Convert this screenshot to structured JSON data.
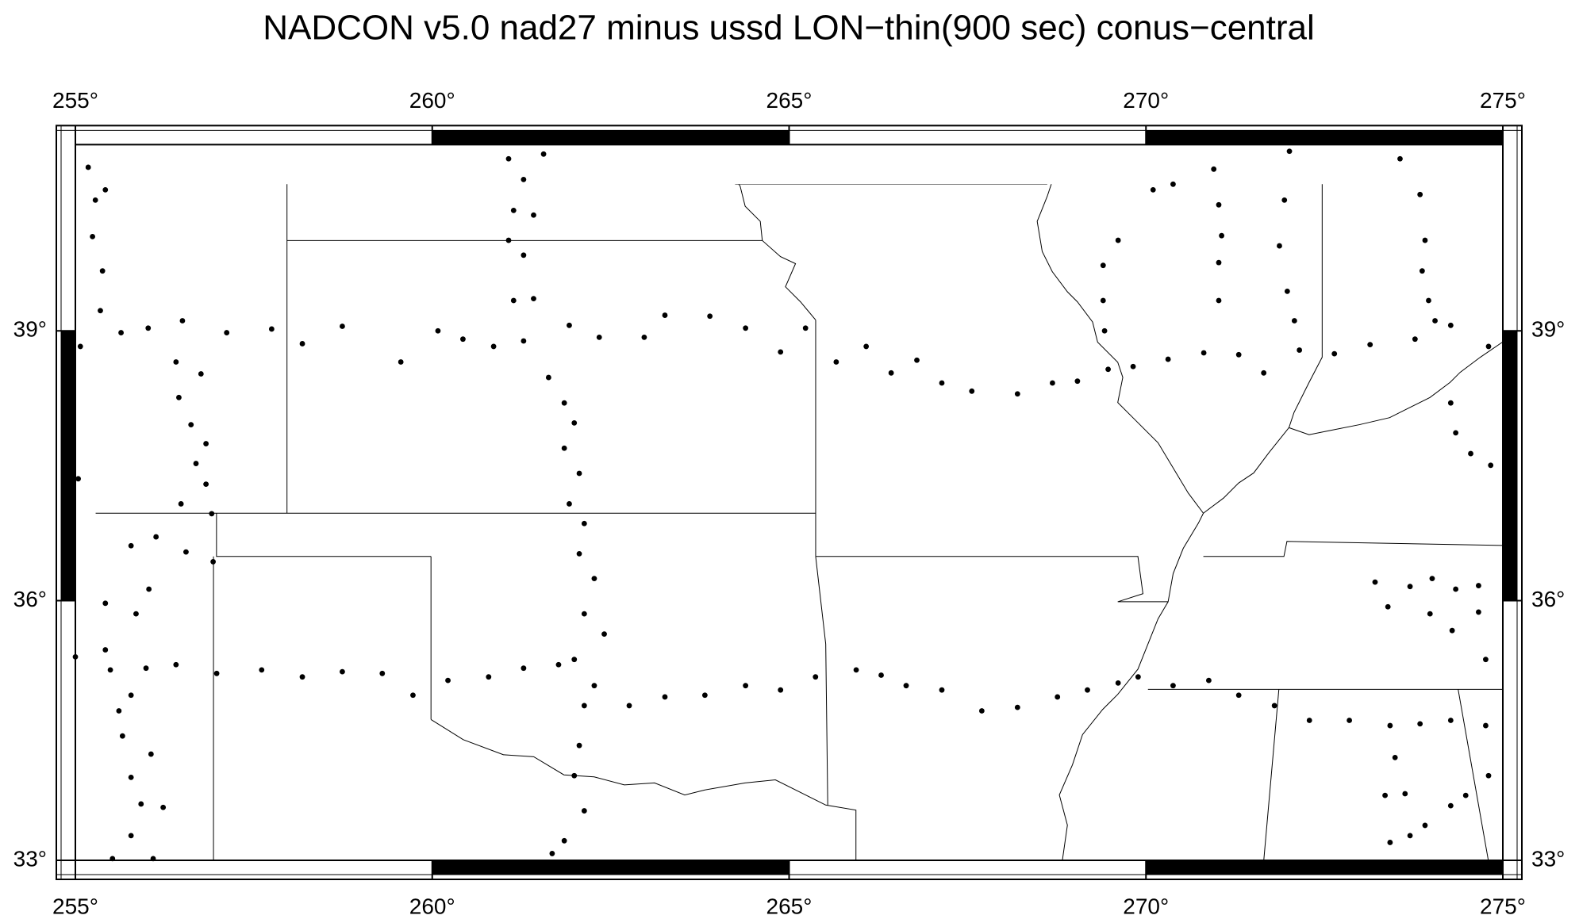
{
  "chart_data": {
    "type": "scatter",
    "title": "NADCON v5.0 nad27 minus ussd LON−thin(900 sec) conus−central",
    "projection": "mercator",
    "color": "#000000",
    "xlim": [
      255,
      275
    ],
    "ylim": [
      33,
      41
    ],
    "xticks": [
      {
        "value": 255,
        "label": "255°"
      },
      {
        "value": 260,
        "label": "260°"
      },
      {
        "value": 265,
        "label": "265°"
      },
      {
        "value": 270,
        "label": "270°"
      },
      {
        "value": 275,
        "label": "275°"
      }
    ],
    "yticks": [
      {
        "value": 33,
        "label": "33°"
      },
      {
        "value": 36,
        "label": "36°"
      },
      {
        "value": 39,
        "label": "39°"
      }
    ],
    "x": [
      255.07,
      255.64,
      256.02,
      256.5,
      257.12,
      257.75,
      258.18,
      258.74,
      259.56,
      260.08,
      260.43,
      260.86,
      261.28,
      261.92,
      262.34,
      262.97,
      263.26,
      263.89,
      264.39,
      264.88,
      265.23,
      265.66,
      266.08,
      266.43,
      266.79,
      267.14,
      267.56,
      268.2,
      268.69,
      269.04,
      269.47,
      269.82,
      270.31,
      270.81,
      271.3,
      271.65,
      272.15,
      272.64,
      273.14,
      273.77,
      274.27,
      274.8,
      255.0,
      255.49,
      255.99,
      256.41,
      256.98,
      257.61,
      258.18,
      258.74,
      259.3,
      259.73,
      260.22,
      260.79,
      261.28,
      261.77,
      262.27,
      262.76,
      263.26,
      263.82,
      264.39,
      264.88,
      265.37,
      265.94,
      266.29,
      266.64,
      267.14,
      267.7,
      268.2,
      268.76,
      269.18,
      269.61,
      269.89,
      270.38,
      270.88,
      271.3,
      271.8,
      272.29,
      272.85,
      273.42,
      273.84,
      274.27,
      274.76,
      256.41,
      256.76,
      256.45,
      256.62,
      256.83,
      256.69,
      256.83,
      256.48,
      256.91,
      256.55,
      256.93,
      261.63,
      261.85,
      261.99,
      261.85,
      262.06,
      261.92,
      262.13,
      262.06,
      262.27,
      262.13,
      262.41,
      261.99,
      262.13,
      262.06,
      261.99,
      262.13,
      261.85,
      261.68,
      261.07,
      261.28,
      261.56,
      261.14,
      261.42,
      261.07,
      261.28,
      261.14,
      261.42,
      255.18,
      255.28,
      255.42,
      255.24,
      255.38,
      255.35,
      255.04,
      255.78,
      256.13,
      256.03,
      255.42,
      255.85,
      255.42,
      255.61,
      255.78,
      255.66,
      256.06,
      255.78,
      255.92,
      256.23,
      255.78,
      256.09,
      255.52,
      270.95,
      271.02,
      271.06,
      271.02,
      271.02,
      270.38,
      270.1,
      269.61,
      269.4,
      269.4,
      269.42,
      272.01,
      271.94,
      271.87,
      271.98,
      272.08,
      273.56,
      273.84,
      273.91,
      273.87,
      273.96,
      274.05,
      274.27,
      274.34,
      274.55,
      274.83,
      273.21,
      273.7,
      274.01,
      274.34,
      274.66,
      273.39,
      273.98,
      274.66,
      274.29,
      274.76,
      273.49,
      273.35,
      273.63,
      273.42,
      273.7,
      273.91,
      274.27,
      274.48,
      274.8
    ],
    "values": [
      38.83,
      38.98,
      39.03,
      39.11,
      38.98,
      39.02,
      38.86,
      39.05,
      38.66,
      39.0,
      38.91,
      38.83,
      38.89,
      39.06,
      38.93,
      38.93,
      39.17,
      39.16,
      39.03,
      38.77,
      39.03,
      38.66,
      38.83,
      38.54,
      38.68,
      38.43,
      38.34,
      38.31,
      38.43,
      38.45,
      38.58,
      38.61,
      38.69,
      38.76,
      38.74,
      38.54,
      38.79,
      38.75,
      38.85,
      38.91,
      39.06,
      38.83,
      35.36,
      35.21,
      35.23,
      35.27,
      35.17,
      35.21,
      35.13,
      35.19,
      35.17,
      34.92,
      35.09,
      35.13,
      35.23,
      35.27,
      35.03,
      34.8,
      34.9,
      34.92,
      35.03,
      34.98,
      35.13,
      35.21,
      35.15,
      35.03,
      34.98,
      34.74,
      34.78,
      34.9,
      34.98,
      35.06,
      35.13,
      35.03,
      35.09,
      34.92,
      34.8,
      34.63,
      34.63,
      34.57,
      34.59,
      34.63,
      34.57,
      38.66,
      38.53,
      38.27,
      37.97,
      37.76,
      37.54,
      37.31,
      37.09,
      36.98,
      36.55,
      36.44,
      38.49,
      38.21,
      37.99,
      37.71,
      37.43,
      37.09,
      36.87,
      36.53,
      36.25,
      35.85,
      35.62,
      35.33,
      34.8,
      34.34,
      33.99,
      33.58,
      33.23,
      33.08,
      40.85,
      40.63,
      40.9,
      40.3,
      40.25,
      39.98,
      39.82,
      39.33,
      39.35,
      40.76,
      40.41,
      40.52,
      40.02,
      39.65,
      39.22,
      37.37,
      36.62,
      36.72,
      36.13,
      35.97,
      35.85,
      35.44,
      34.74,
      34.92,
      34.45,
      34.24,
      33.97,
      33.66,
      33.62,
      33.29,
      33.02,
      33.02,
      40.74,
      40.36,
      40.03,
      39.74,
      39.33,
      40.58,
      40.52,
      39.98,
      39.71,
      39.33,
      39.0,
      40.93,
      40.41,
      39.92,
      39.43,
      39.11,
      40.85,
      40.47,
      39.98,
      39.65,
      39.33,
      39.11,
      38.21,
      37.88,
      37.65,
      37.52,
      36.21,
      36.16,
      36.25,
      36.13,
      36.17,
      35.93,
      35.85,
      35.87,
      35.66,
      35.33,
      34.2,
      33.76,
      33.78,
      33.21,
      33.29,
      33.41,
      33.64,
      33.76,
      33.99
    ]
  }
}
